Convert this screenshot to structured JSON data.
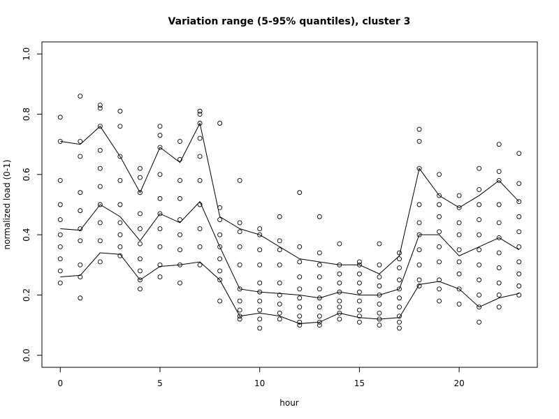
{
  "chart_data": {
    "type": "scatter",
    "title": "Variation range (5-95% quantiles), cluster 3",
    "xlabel": "hour",
    "ylabel": "normalized load (0-1)",
    "x": [
      0,
      1,
      2,
      3,
      4,
      5,
      6,
      7,
      8,
      9,
      10,
      11,
      12,
      13,
      14,
      15,
      16,
      17,
      18,
      19,
      20,
      21,
      22,
      23
    ],
    "points": [
      [
        0.79,
        0.71,
        0.58,
        0.5,
        0.45,
        0.4,
        0.36,
        0.32,
        0.28,
        0.24
      ],
      [
        0.86,
        0.71,
        0.66,
        0.54,
        0.48,
        0.42,
        0.38,
        0.3,
        0.26,
        0.19
      ],
      [
        0.83,
        0.82,
        0.76,
        0.68,
        0.62,
        0.56,
        0.5,
        0.44,
        0.38,
        0.31
      ],
      [
        0.81,
        0.76,
        0.66,
        0.58,
        0.5,
        0.44,
        0.4,
        0.36,
        0.33
      ],
      [
        0.62,
        0.59,
        0.54,
        0.47,
        0.42,
        0.37,
        0.32,
        0.28,
        0.25,
        0.22
      ],
      [
        0.76,
        0.73,
        0.69,
        0.6,
        0.52,
        0.47,
        0.42,
        0.36,
        0.3,
        0.26
      ],
      [
        0.71,
        0.65,
        0.58,
        0.52,
        0.45,
        0.4,
        0.35,
        0.3,
        0.24
      ],
      [
        0.81,
        0.8,
        0.77,
        0.72,
        0.66,
        0.58,
        0.5,
        0.42,
        0.36,
        0.3
      ],
      [
        0.77,
        0.49,
        0.45,
        0.4,
        0.36,
        0.32,
        0.28,
        0.25,
        0.18
      ],
      [
        0.58,
        0.44,
        0.41,
        0.36,
        0.3,
        0.22,
        0.18,
        0.15,
        0.13,
        0.12
      ],
      [
        0.42,
        0.4,
        0.35,
        0.3,
        0.24,
        0.21,
        0.18,
        0.15,
        0.12,
        0.09
      ],
      [
        0.46,
        0.38,
        0.35,
        0.3,
        0.24,
        0.2,
        0.17,
        0.14,
        0.12
      ],
      [
        0.54,
        0.36,
        0.31,
        0.26,
        0.22,
        0.19,
        0.16,
        0.13,
        0.11,
        0.1
      ],
      [
        0.46,
        0.34,
        0.3,
        0.26,
        0.22,
        0.19,
        0.16,
        0.13,
        0.11,
        0.1
      ],
      [
        0.37,
        0.3,
        0.27,
        0.24,
        0.21,
        0.18,
        0.16,
        0.14,
        0.12
      ],
      [
        0.31,
        0.3,
        0.27,
        0.24,
        0.21,
        0.18,
        0.15,
        0.13,
        0.11
      ],
      [
        0.37,
        0.3,
        0.26,
        0.23,
        0.2,
        0.17,
        0.14,
        0.12,
        0.1
      ],
      [
        0.34,
        0.32,
        0.29,
        0.25,
        0.22,
        0.19,
        0.16,
        0.13,
        0.11,
        0.09
      ],
      [
        0.75,
        0.71,
        0.62,
        0.5,
        0.44,
        0.4,
        0.35,
        0.3,
        0.25,
        0.23
      ],
      [
        0.6,
        0.53,
        0.5,
        0.46,
        0.41,
        0.36,
        0.31,
        0.25,
        0.22,
        0.18
      ],
      [
        0.53,
        0.49,
        0.44,
        0.4,
        0.35,
        0.31,
        0.27,
        0.22,
        0.17
      ],
      [
        0.62,
        0.55,
        0.5,
        0.45,
        0.4,
        0.35,
        0.3,
        0.25,
        0.2,
        0.16,
        0.11
      ],
      [
        0.7,
        0.61,
        0.58,
        0.5,
        0.44,
        0.39,
        0.34,
        0.29,
        0.24,
        0.2,
        0.16
      ],
      [
        0.67,
        0.57,
        0.51,
        0.46,
        0.41,
        0.36,
        0.31,
        0.27,
        0.23,
        0.2
      ]
    ],
    "lines": [
      {
        "values": [
          0.71,
          0.7,
          0.76,
          0.66,
          0.54,
          0.69,
          0.64,
          0.77,
          0.46,
          0.42,
          0.4,
          0.36,
          0.32,
          0.31,
          0.3,
          0.3,
          0.27,
          0.33,
          0.62,
          0.53,
          0.49,
          0.53,
          0.58,
          0.51
        ]
      },
      {
        "values": [
          0.42,
          0.415,
          0.5,
          0.46,
          0.38,
          0.47,
          0.44,
          0.51,
          0.36,
          0.22,
          0.21,
          0.205,
          0.2,
          0.19,
          0.21,
          0.2,
          0.2,
          0.22,
          0.4,
          0.4,
          0.33,
          0.36,
          0.39,
          0.35
        ]
      },
      {
        "values": [
          0.26,
          0.265,
          0.34,
          0.335,
          0.25,
          0.295,
          0.3,
          0.31,
          0.25,
          0.13,
          0.14,
          0.13,
          0.105,
          0.11,
          0.14,
          0.125,
          0.12,
          0.125,
          0.235,
          0.245,
          0.22,
          0.16,
          0.19,
          0.205
        ]
      }
    ],
    "color": "#000000",
    "xlim": [
      -0.92,
      23.92
    ],
    "ylim": [
      -0.04,
      1.04
    ],
    "xticks": [
      0,
      5,
      10,
      15,
      20
    ],
    "yticks": [
      {
        "value": 0,
        "label": "0.0"
      },
      0.2,
      0.4,
      0.6,
      0.8,
      {
        "value": 1,
        "label": "1.0"
      }
    ]
  }
}
